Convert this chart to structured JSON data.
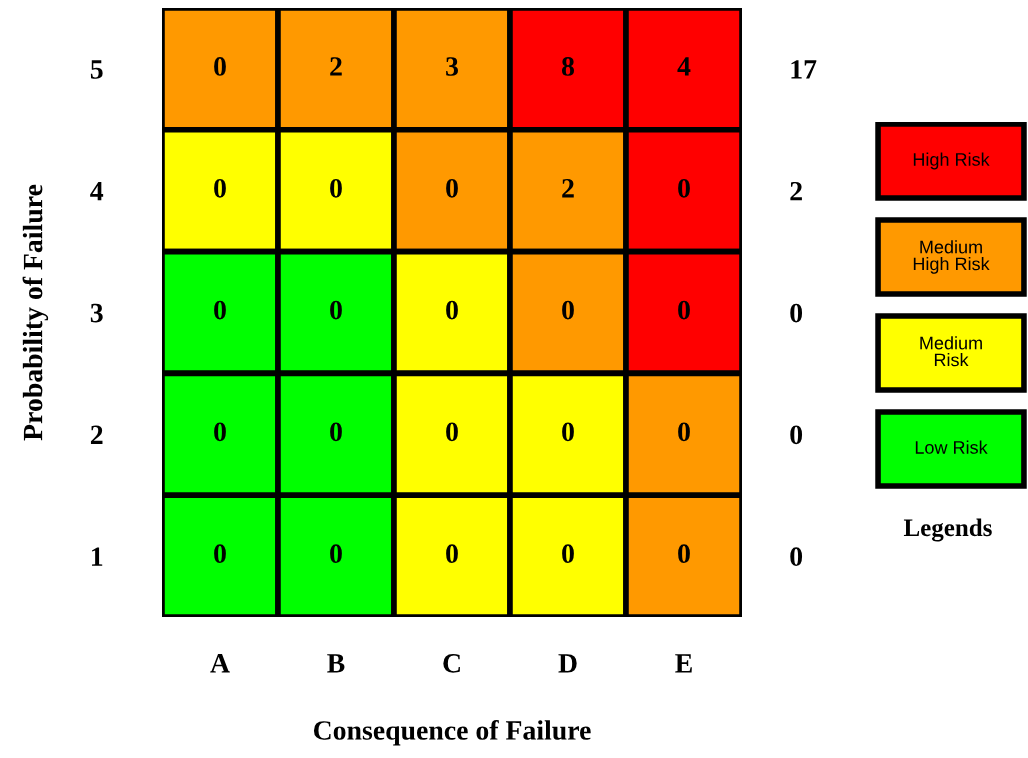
{
  "chart_data": [
    {
      "type": "heatmap",
      "xlabel": "Consequence of Failure",
      "ylabel": "Probability of Failure",
      "categories": [
        "A",
        "B",
        "C",
        "D",
        "E"
      ],
      "y_categories": [
        "5",
        "4",
        "3",
        "2",
        "1"
      ],
      "y2_categories": [
        "17",
        "2",
        "0",
        "0",
        "0"
      ],
      "cells": [
        [
          0,
          2,
          3,
          8,
          4
        ],
        [
          0,
          0,
          0,
          2,
          0
        ],
        [
          0,
          0,
          0,
          0,
          0
        ],
        [
          0,
          0,
          0,
          0,
          0
        ],
        [
          0,
          0,
          0,
          0,
          0
        ]
      ],
      "colors": [
        [
          "#ff9900",
          "#ff9900",
          "#ff9900",
          "#ff0000",
          "#ff0000"
        ],
        [
          "#ffff00",
          "#ffff00",
          "#ff9900",
          "#ff9900",
          "#ff0000"
        ],
        [
          "#00ff00",
          "#00ff00",
          "#ffff00",
          "#ff9900",
          "#ff0000"
        ],
        [
          "#00ff00",
          "#00ff00",
          "#ffff00",
          "#ffff00",
          "#ff9900"
        ],
        [
          "#00ff00",
          "#00ff00",
          "#ffff00",
          "#ffff00",
          "#ff9900"
        ]
      ],
      "data_labels": true
    },
    {
      "type": "other",
      "categories": [
        "High Risk",
        "Medium\nHigh Risk",
        "Medium\nRisk",
        "Low Risk"
      ],
      "colors": [
        "#ff0000",
        "#ff9900",
        "#ffff00",
        "#00ff00"
      ],
      "annotations": [
        "Legends"
      ]
    }
  ]
}
